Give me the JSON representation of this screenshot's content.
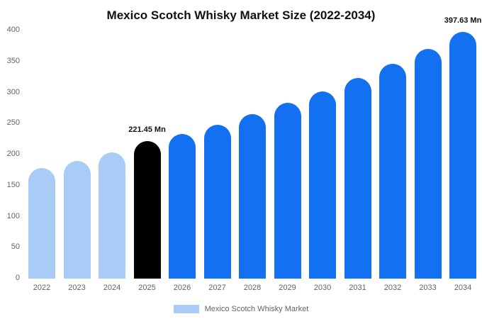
{
  "title": "Mexico Scotch Whisky Market Size (2022-2034)",
  "legend": {
    "label": "Mexico Scotch Whisky Market",
    "swatch_color": "#a8ccf6"
  },
  "colors": {
    "historical": "#a8ccf6",
    "highlight": "#000000",
    "forecast": "#1370f0",
    "axis_text": "#5f6368",
    "title_text": "#111111"
  },
  "chart_data": {
    "type": "bar",
    "title": "Mexico Scotch Whisky Market Size (2022-2034)",
    "xlabel": "",
    "ylabel": "",
    "ylim": [
      0,
      400
    ],
    "yticks": [
      0,
      50,
      100,
      150,
      200,
      250,
      300,
      350,
      400
    ],
    "grid": false,
    "legend_position": "bottom",
    "categories": [
      "2022",
      "2023",
      "2024",
      "2025",
      "2026",
      "2027",
      "2028",
      "2029",
      "2030",
      "2031",
      "2032",
      "2033",
      "2034"
    ],
    "values": [
      178,
      190,
      203,
      221.45,
      233,
      248,
      265,
      283,
      302,
      323,
      346,
      370,
      397.63
    ],
    "bar_colors": [
      "#a8ccf6",
      "#a8ccf6",
      "#a8ccf6",
      "#000000",
      "#1370f0",
      "#1370f0",
      "#1370f0",
      "#1370f0",
      "#1370f0",
      "#1370f0",
      "#1370f0",
      "#1370f0",
      "#1370f0"
    ],
    "data_labels": {
      "2025": "221.45 Mn",
      "2034": "397.63 Mn"
    },
    "unit": "Mn"
  }
}
